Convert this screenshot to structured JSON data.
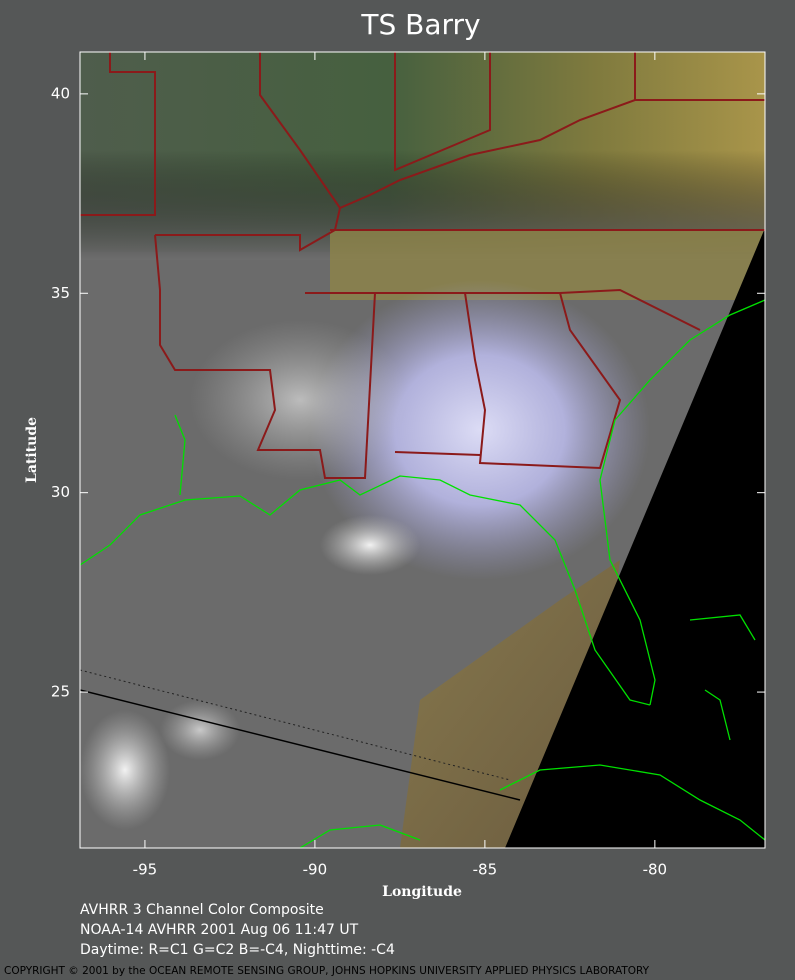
{
  "map": {
    "title": "TS Barry",
    "x_label": "Longitude",
    "y_label": "Latitude",
    "xlim": [
      -96.91,
      -76.76
    ],
    "ylim": [
      21.09,
      41.05
    ],
    "xticks": [
      -95,
      -90,
      -85,
      -80
    ],
    "yticks": [
      25,
      30,
      35,
      40
    ]
  },
  "caption": [
    "AVHRR 3 Channel Color Composite",
    "NOAA-14 AVHRR 2001 Aug 06 11:47 UT",
    "Daytime: R=C1 G=C2 B=-C4, Nighttime: -C4"
  ],
  "copyright": "COPYRIGHT © 2001 by the OCEAN REMOTE SENSING GROUP, JOHNS HOPKINS UNIVERSITY APPLIED PHYSICS LABORATORY"
}
